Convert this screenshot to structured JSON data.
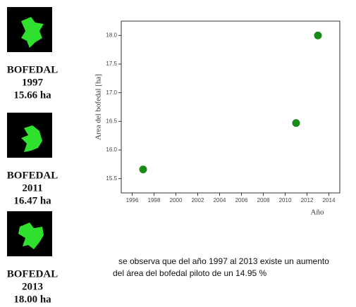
{
  "panels": [
    {
      "label": "BOFEDAL",
      "year": "1997",
      "area": "15.66 ha"
    },
    {
      "label": "BOFEDAL",
      "year": "2011",
      "area": "16.47 ha"
    },
    {
      "label": "BOFEDAL",
      "year": "2013",
      "area": "18.00 ha"
    }
  ],
  "chart_data": {
    "type": "scatter",
    "x_label": "Año",
    "y_label": "Area del bofedal [ha]",
    "x": [
      1997,
      2011,
      2013
    ],
    "values": [
      15.66,
      16.47,
      18.0
    ],
    "color": "#188a18",
    "xlim": [
      1995,
      2015
    ],
    "xticks": [
      1996,
      1998,
      2000,
      2002,
      2004,
      2006,
      2008,
      2010,
      2012,
      2014
    ],
    "ylim": [
      15.25,
      18.25
    ],
    "yticks": [
      15.5,
      {
        "value": 16,
        "label": "16.0"
      },
      16.5,
      {
        "value": 17,
        "label": "17.0"
      },
      17.5,
      {
        "value": 18,
        "label": "18.0"
      }
    ],
    "grid": false
  },
  "caption": [
    "se observa que del año 1997 al 2013 existe un aumento",
    "del área del bofedal piloto de un 14.95 %"
  ]
}
